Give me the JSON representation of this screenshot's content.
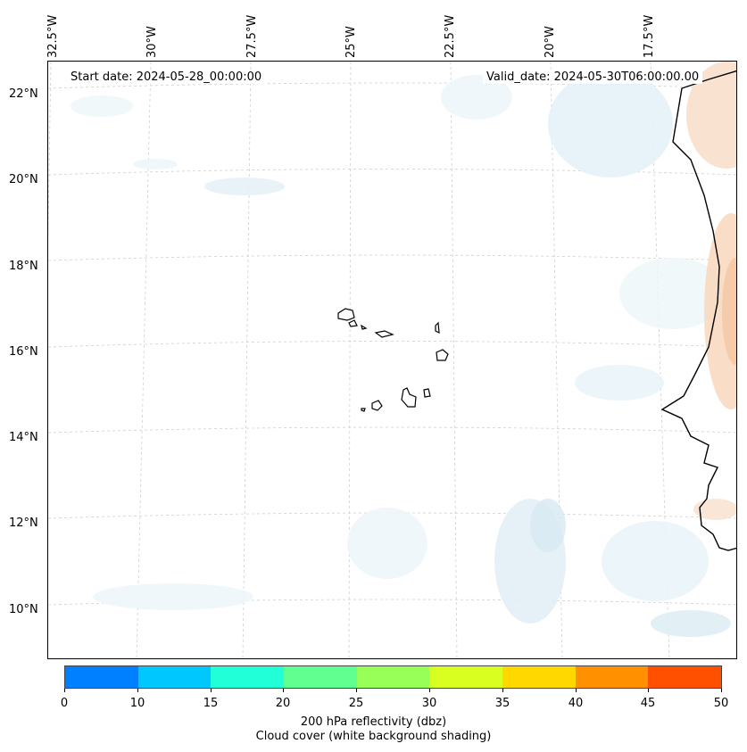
{
  "map": {
    "start_date": "Start date: 2024-05-28_00:00:00",
    "valid_date": "Valid_date: 2024-05-30T06:00:00.00",
    "longitude_labels": [
      "32.5°W",
      "30°W",
      "27.5°W",
      "25°W",
      "22.5°W",
      "20°W",
      "17.5°W"
    ],
    "latitude_labels": [
      "22°N",
      "20°N",
      "18°N",
      "16°N",
      "14°N",
      "12°N",
      "10°N"
    ]
  },
  "colorbar": {
    "ticks": [
      "0",
      "10",
      "15",
      "20",
      "25",
      "30",
      "35",
      "40",
      "45",
      "50"
    ],
    "colors": [
      "#0080ff",
      "#00c8ff",
      "#20ffd8",
      "#60ff90",
      "#98ff58",
      "#d8ff20",
      "#ffd800",
      "#ff9000",
      "#ff5000"
    ],
    "label_line1": "200 hPa reflectivity (dbz)",
    "label_line2": "Cloud cover (white background shading)"
  }
}
